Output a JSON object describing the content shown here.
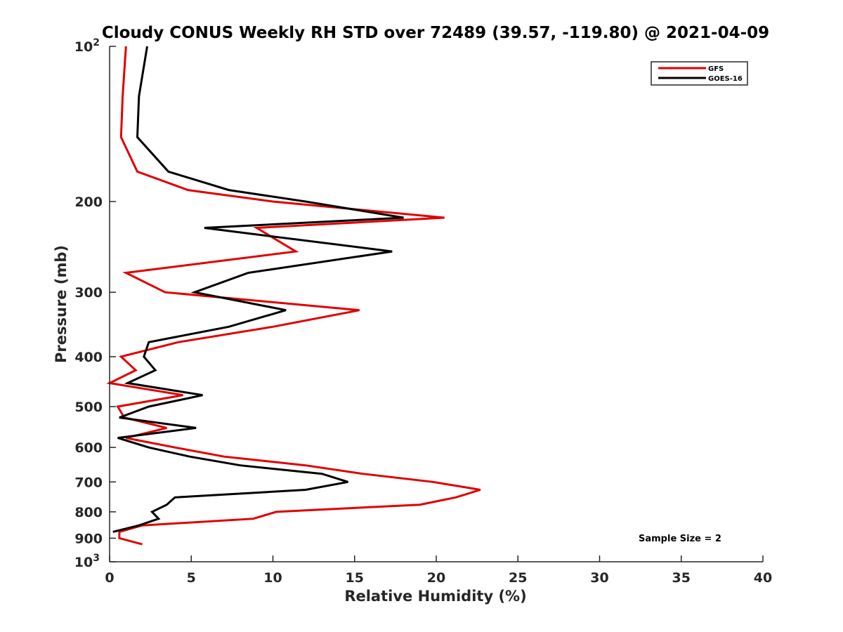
{
  "chart_data": {
    "type": "line",
    "title": "Cloudy CONUS Weekly RH STD over 72489 (39.57, -119.80) @ 2021-04-09",
    "xlabel": "Relative Humidity (%)",
    "ylabel": "Pressure (mb)",
    "xlim": [
      0,
      40
    ],
    "ylim": [
      100,
      1000
    ],
    "yscale": "log",
    "y_reversed": true,
    "x_ticks": [
      "0",
      "5",
      "10",
      "15",
      "20",
      "25",
      "30",
      "35",
      "40"
    ],
    "y_ticks": [
      {
        "value": 100,
        "label": "10",
        "sup": "2"
      },
      {
        "value": 200,
        "label": "200",
        "sup": ""
      },
      {
        "value": 300,
        "label": "300",
        "sup": ""
      },
      {
        "value": 400,
        "label": "400",
        "sup": ""
      },
      {
        "value": 500,
        "label": "500",
        "sup": ""
      },
      {
        "value": 600,
        "label": "600",
        "sup": ""
      },
      {
        "value": 700,
        "label": "700",
        "sup": ""
      },
      {
        "value": 800,
        "label": "800",
        "sup": ""
      },
      {
        "value": 900,
        "label": "900",
        "sup": ""
      },
      {
        "value": 1000,
        "label": "10",
        "sup": "3"
      }
    ],
    "legend": {
      "position": "top-right"
    },
    "annotation": "Sample Size = 2",
    "grid": false,
    "series": [
      {
        "name": "GFS",
        "color": "#e00000",
        "points": [
          {
            "x": 1.0,
            "p": 100
          },
          {
            "x": 0.8,
            "p": 125
          },
          {
            "x": 0.7,
            "p": 150
          },
          {
            "x": 1.7,
            "p": 175
          },
          {
            "x": 4.8,
            "p": 190
          },
          {
            "x": 10.0,
            "p": 200
          },
          {
            "x": 20.5,
            "p": 215
          },
          {
            "x": 9.0,
            "p": 225
          },
          {
            "x": 11.4,
            "p": 250
          },
          {
            "x": 1.0,
            "p": 275
          },
          {
            "x": 3.4,
            "p": 300
          },
          {
            "x": 15.3,
            "p": 325
          },
          {
            "x": 10.0,
            "p": 350
          },
          {
            "x": 4.2,
            "p": 375
          },
          {
            "x": 0.7,
            "p": 400
          },
          {
            "x": 1.6,
            "p": 425
          },
          {
            "x": 0.0,
            "p": 450
          },
          {
            "x": 4.5,
            "p": 475
          },
          {
            "x": 0.5,
            "p": 500
          },
          {
            "x": 0.9,
            "p": 525
          },
          {
            "x": 3.5,
            "p": 550
          },
          {
            "x": 1.0,
            "p": 575
          },
          {
            "x": 4.0,
            "p": 600
          },
          {
            "x": 7.0,
            "p": 625
          },
          {
            "x": 12.0,
            "p": 650
          },
          {
            "x": 15.5,
            "p": 675
          },
          {
            "x": 19.8,
            "p": 700
          },
          {
            "x": 22.7,
            "p": 725
          },
          {
            "x": 21.2,
            "p": 750
          },
          {
            "x": 19.0,
            "p": 775
          },
          {
            "x": 10.2,
            "p": 800
          },
          {
            "x": 8.8,
            "p": 825
          },
          {
            "x": 2.0,
            "p": 850
          },
          {
            "x": 0.6,
            "p": 875
          },
          {
            "x": 0.6,
            "p": 900
          },
          {
            "x": 2.0,
            "p": 925
          }
        ]
      },
      {
        "name": "GOES-16",
        "color": "#000000",
        "points": [
          {
            "x": 2.3,
            "p": 100
          },
          {
            "x": 1.8,
            "p": 125
          },
          {
            "x": 1.7,
            "p": 150
          },
          {
            "x": 3.6,
            "p": 175
          },
          {
            "x": 7.3,
            "p": 190
          },
          {
            "x": 12.0,
            "p": 200
          },
          {
            "x": 18.0,
            "p": 215
          },
          {
            "x": 5.8,
            "p": 225
          },
          {
            "x": 17.3,
            "p": 250
          },
          {
            "x": 8.5,
            "p": 275
          },
          {
            "x": 5.2,
            "p": 300
          },
          {
            "x": 10.8,
            "p": 325
          },
          {
            "x": 7.3,
            "p": 350
          },
          {
            "x": 2.4,
            "p": 375
          },
          {
            "x": 2.1,
            "p": 400
          },
          {
            "x": 2.8,
            "p": 425
          },
          {
            "x": 1.1,
            "p": 450
          },
          {
            "x": 5.7,
            "p": 475
          },
          {
            "x": 2.4,
            "p": 500
          },
          {
            "x": 0.6,
            "p": 525
          },
          {
            "x": 5.3,
            "p": 550
          },
          {
            "x": 0.5,
            "p": 575
          },
          {
            "x": 2.4,
            "p": 600
          },
          {
            "x": 4.9,
            "p": 625
          },
          {
            "x": 8.0,
            "p": 650
          },
          {
            "x": 13.0,
            "p": 675
          },
          {
            "x": 14.6,
            "p": 700
          },
          {
            "x": 12.0,
            "p": 725
          },
          {
            "x": 4.0,
            "p": 750
          },
          {
            "x": 3.5,
            "p": 775
          },
          {
            "x": 2.6,
            "p": 800
          },
          {
            "x": 3.0,
            "p": 825
          },
          {
            "x": 1.8,
            "p": 850
          },
          {
            "x": 0.2,
            "p": 875
          }
        ]
      }
    ]
  }
}
